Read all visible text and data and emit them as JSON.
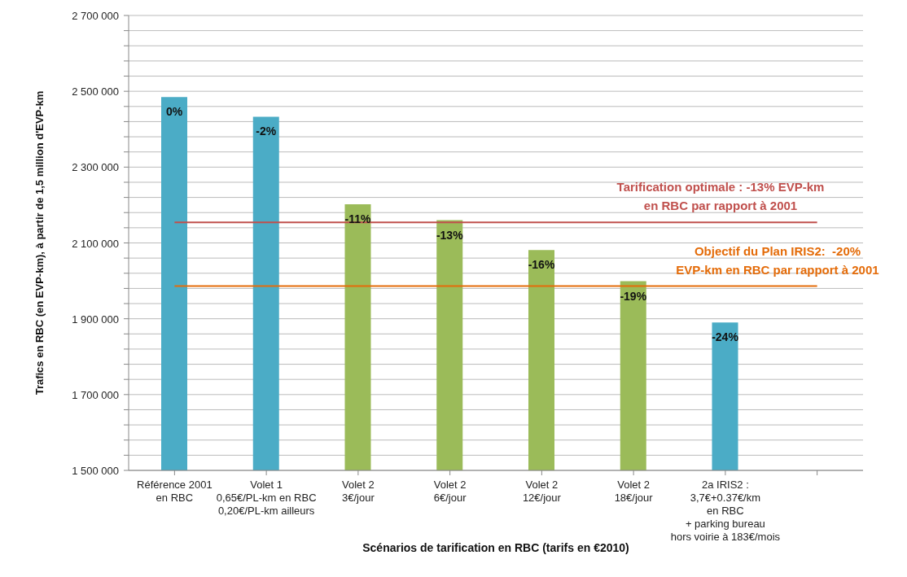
{
  "chart_data": {
    "type": "bar",
    "xlabel": "Scénarios de tarification en RBC (tarifs en €2010)",
    "ylabel": "Trafics en RBC (en EVP-km), à partir de 1,5 million d'EVP-km",
    "categories": [
      "Référence 2001\nen RBC",
      "Volet 1\n0,65€/PL-km en RBC\n0,20€/PL-km ailleurs",
      "Volet 2\n3€/jour",
      "Volet 2\n6€/jour",
      "Volet 2\n12€/jour",
      "Volet 2\n18€/jour",
      "2a IRIS2 :\n3,7€+0.37€/km\nen RBC\n+ parking bureau\nhors voirie à 183€/mois",
      null
    ],
    "values": [
      2485000,
      2433000,
      2202000,
      2160000,
      2081000,
      1999000,
      1890000,
      null
    ],
    "colors": [
      "#4bacc6",
      "#4bacc6",
      "#9bbb59",
      "#9bbb59",
      "#9bbb59",
      "#9bbb59",
      "#4bacc6",
      "#4bacc6"
    ],
    "annotations": [
      {
        "text": "0%",
        "x": "Référence 2001\nen RBC",
        "y": 2485000
      },
      {
        "text": "-2%",
        "x": "Volet 1\n0,65€/PL-km en RBC\n0,20€/PL-km ailleurs",
        "y": 2433000
      },
      {
        "text": "-11%",
        "x": "Volet 2\n3€/jour",
        "y": 2202000
      },
      {
        "text": "-13%",
        "x": "Volet 2\n6€/jour",
        "y": 2160000
      },
      {
        "text": "-16%",
        "x": "Volet 2\n12€/jour",
        "y": 2081000
      },
      {
        "text": "-19%",
        "x": "Volet 2\n18€/jour",
        "y": 1999000
      },
      {
        "text": "-24%",
        "x": "2a IRIS2 :\n3,7€+0.37€/km\nen RBC\n+ parking bureau\nhors voirie à 183€/mois",
        "y": 1890000
      },
      {
        "text": "Tarification optimale : -13% EVP-km\nen RBC par rapport à 2001",
        "y": 2154000
      },
      {
        "text": "Objectif du Plan IRIS2:  -20%\nEVP-km en RBC par rapport à 2001",
        "y": 1986000
      }
    ],
    "ylim": [
      1500000,
      2700000
    ],
    "yticks": [
      {
        "value": 1500000,
        "label": "1 500 000"
      },
      {
        "value": 1540000,
        "label": null
      },
      {
        "value": 1580000,
        "label": null
      },
      {
        "value": 1620000,
        "label": null
      },
      {
        "value": 1660000,
        "label": null
      },
      {
        "value": 1700000,
        "label": "1 700 000"
      },
      {
        "value": 1740000,
        "label": null
      },
      {
        "value": 1780000,
        "label": null
      },
      {
        "value": 1820000,
        "label": null
      },
      {
        "value": 1860000,
        "label": null
      },
      {
        "value": 1900000,
        "label": "1 900 000"
      },
      {
        "value": 1940000,
        "label": null
      },
      {
        "value": 1980000,
        "label": null
      },
      {
        "value": 2020000,
        "label": null
      },
      {
        "value": 2060000,
        "label": null
      },
      {
        "value": 2100000,
        "label": "2 100 000"
      },
      {
        "value": 2140000,
        "label": null
      },
      {
        "value": 2180000,
        "label": null
      },
      {
        "value": 2220000,
        "label": null
      },
      {
        "value": 2260000,
        "label": null
      },
      {
        "value": 2300000,
        "label": "2 300 000"
      },
      {
        "value": 2340000,
        "label": null
      },
      {
        "value": 2380000,
        "label": null
      },
      {
        "value": 2420000,
        "label": null
      },
      {
        "value": 2460000,
        "label": null
      },
      {
        "value": 2500000,
        "label": "2 500 000"
      },
      {
        "value": 2540000,
        "label": null
      },
      {
        "value": 2580000,
        "label": null
      },
      {
        "value": 2620000,
        "label": null
      },
      {
        "value": 2660000,
        "label": null
      },
      {
        "value": 2700000,
        "label": "2 700 000"
      }
    ],
    "ref_lines": [
      {
        "axis": "y",
        "value": 2154000,
        "color": "#c0504d"
      },
      {
        "axis": "y",
        "value": 1986000,
        "color": "#e46c0a"
      }
    ],
    "grid": "y",
    "legend": false
  }
}
